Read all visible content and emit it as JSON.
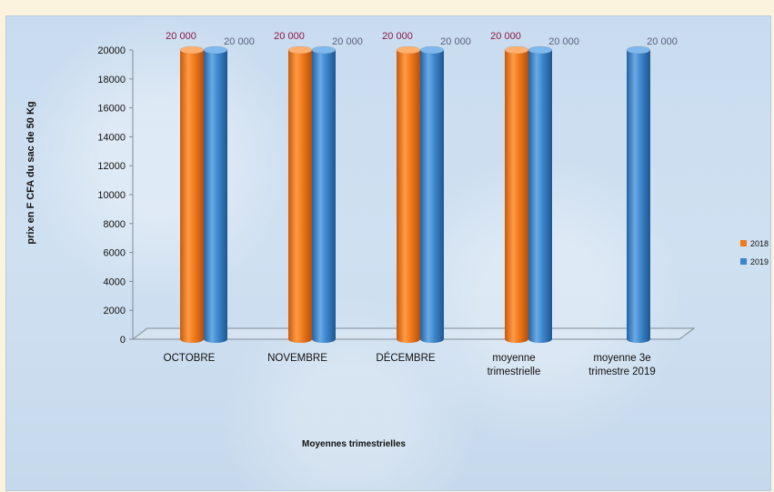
{
  "chart_data": {
    "type": "bar",
    "title": "",
    "xlabel": "Moyennes trimestrielles",
    "ylabel": "prix en F CFA du sac de 50 Kg",
    "categories": [
      [
        "OCTOBRE"
      ],
      [
        "NOVEMBRE"
      ],
      [
        "DÉCEMBRE"
      ],
      [
        "moyenne",
        "trimestrielle"
      ],
      [
        "moyenne 3e",
        "trimestre 2019"
      ]
    ],
    "series": [
      {
        "name": "2018",
        "color": "#f07a1e",
        "values": [
          20000,
          20000,
          20000,
          20000,
          null
        ],
        "labels": [
          "20 000",
          "20 000",
          "20 000",
          "20 000",
          ""
        ]
      },
      {
        "name": "2019",
        "color": "#3d86cc",
        "values": [
          20000,
          20000,
          20000,
          20000,
          20000
        ],
        "labels": [
          "20 000",
          "20 000",
          "20 000",
          "20 000",
          "20 000"
        ]
      }
    ],
    "yticks": [
      "0",
      "2000",
      "4000",
      "6000",
      "8000",
      "10000",
      "12000",
      "14000",
      "16000",
      "18000",
      "20000"
    ],
    "ylim": [
      0,
      20000
    ],
    "grid": false,
    "legend_position": "right"
  }
}
